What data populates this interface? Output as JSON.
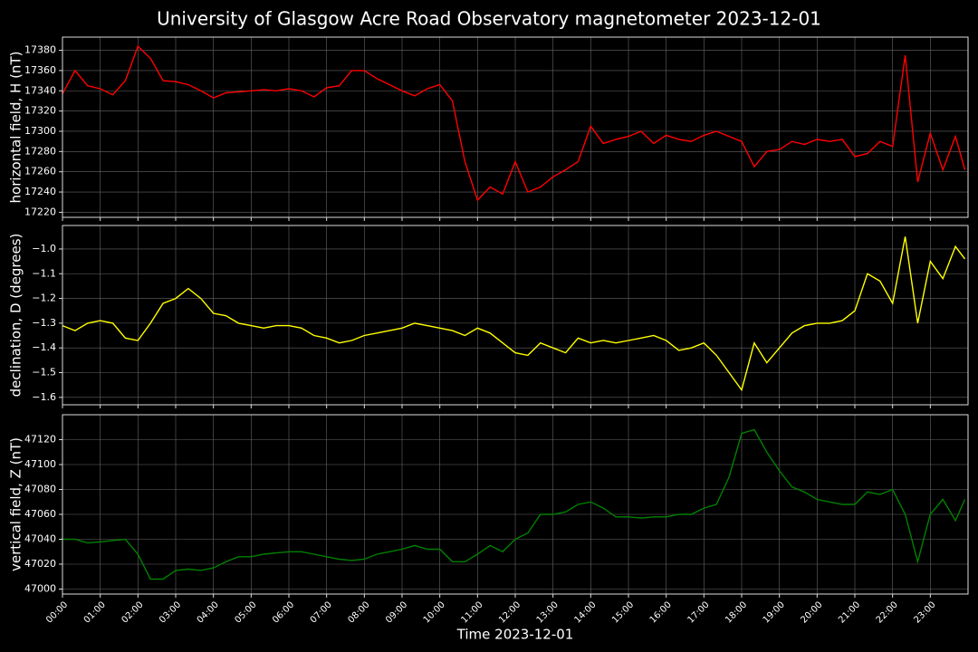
{
  "title": "University of Glasgow Acre Road Observatory magnetometer 2023-12-01",
  "chart_data": [
    {
      "type": "line",
      "ylabel": "horizontal field, H (nT)",
      "color": "#ff0000",
      "grid": true,
      "xlim": [
        "00:00",
        "24:00"
      ],
      "ylim": [
        17215,
        17393
      ],
      "yticks": [
        17220,
        17240,
        17260,
        17280,
        17300,
        17320,
        17340,
        17360,
        17380
      ],
      "xticks": [
        "00:00",
        "01:00",
        "02:00",
        "03:00",
        "04:00",
        "05:00",
        "06:00",
        "07:00",
        "08:00",
        "09:00",
        "10:00",
        "11:00",
        "12:00",
        "13:00",
        "14:00",
        "15:00",
        "16:00",
        "17:00",
        "18:00",
        "19:00",
        "20:00",
        "21:00",
        "22:00",
        "23:00"
      ],
      "x": [
        "00:00",
        "00:20",
        "00:40",
        "01:00",
        "01:20",
        "01:40",
        "02:00",
        "02:20",
        "02:40",
        "03:00",
        "03:20",
        "03:40",
        "04:00",
        "04:20",
        "04:40",
        "05:00",
        "05:20",
        "05:40",
        "06:00",
        "06:20",
        "06:40",
        "07:00",
        "07:20",
        "07:40",
        "08:00",
        "08:20",
        "08:40",
        "09:00",
        "09:20",
        "09:40",
        "10:00",
        "10:20",
        "10:40",
        "11:00",
        "11:20",
        "11:40",
        "12:00",
        "12:20",
        "12:40",
        "13:00",
        "13:20",
        "13:40",
        "14:00",
        "14:20",
        "14:40",
        "15:00",
        "15:20",
        "15:40",
        "16:00",
        "16:20",
        "16:40",
        "17:00",
        "17:20",
        "17:40",
        "18:00",
        "18:20",
        "18:40",
        "19:00",
        "19:20",
        "19:40",
        "20:00",
        "20:20",
        "20:40",
        "21:00",
        "21:20",
        "21:40",
        "22:00",
        "22:20",
        "22:40",
        "23:00",
        "23:20",
        "23:40",
        "23:55"
      ],
      "values": [
        17337,
        17360,
        17345,
        17342,
        17336,
        17350,
        17384,
        17372,
        17350,
        17349,
        17346,
        17340,
        17333,
        17338,
        17339,
        17340,
        17341,
        17340,
        17342,
        17340,
        17334,
        17343,
        17345,
        17360,
        17360,
        17352,
        17346,
        17340,
        17335,
        17342,
        17346,
        17330,
        17270,
        17232,
        17245,
        17238,
        17270,
        17240,
        17245,
        17255,
        17262,
        17270,
        17305,
        17288,
        17292,
        17295,
        17300,
        17288,
        17296,
        17292,
        17290,
        17296,
        17300,
        17295,
        17290,
        17265,
        17280,
        17282,
        17290,
        17287,
        17292,
        17290,
        17292,
        17275,
        17278,
        17290,
        17285,
        17375,
        17250,
        17298,
        17262,
        17295,
        17262
      ]
    },
    {
      "type": "line",
      "ylabel": "declination, D (degrees)",
      "color": "#ffff00",
      "grid": true,
      "xlim": [
        "00:00",
        "24:00"
      ],
      "ylim": [
        -1.63,
        -0.905
      ],
      "yticks": [
        {
          "value": -1.6,
          "label": "−1.6"
        },
        {
          "value": -1.5,
          "label": "−1.5"
        },
        {
          "value": -1.4,
          "label": "−1.4"
        },
        {
          "value": -1.3,
          "label": "−1.3"
        },
        {
          "value": -1.2,
          "label": "−1.2"
        },
        {
          "value": -1.1,
          "label": "−1.1"
        },
        {
          "value": -1.0,
          "label": "−1.0"
        }
      ],
      "xticks": [
        "00:00",
        "01:00",
        "02:00",
        "03:00",
        "04:00",
        "05:00",
        "06:00",
        "07:00",
        "08:00",
        "09:00",
        "10:00",
        "11:00",
        "12:00",
        "13:00",
        "14:00",
        "15:00",
        "16:00",
        "17:00",
        "18:00",
        "19:00",
        "20:00",
        "21:00",
        "22:00",
        "23:00"
      ],
      "x": [
        "00:00",
        "00:20",
        "00:40",
        "01:00",
        "01:20",
        "01:40",
        "02:00",
        "02:20",
        "02:40",
        "03:00",
        "03:20",
        "03:40",
        "04:00",
        "04:20",
        "04:40",
        "05:00",
        "05:20",
        "05:40",
        "06:00",
        "06:20",
        "06:40",
        "07:00",
        "07:20",
        "07:40",
        "08:00",
        "08:20",
        "08:40",
        "09:00",
        "09:20",
        "09:40",
        "10:00",
        "10:20",
        "10:40",
        "11:00",
        "11:20",
        "11:40",
        "12:00",
        "12:20",
        "12:40",
        "13:00",
        "13:20",
        "13:40",
        "14:00",
        "14:20",
        "14:40",
        "15:00",
        "15:20",
        "15:40",
        "16:00",
        "16:20",
        "16:40",
        "17:00",
        "17:20",
        "17:40",
        "18:00",
        "18:20",
        "18:40",
        "19:00",
        "19:20",
        "19:40",
        "20:00",
        "20:20",
        "20:40",
        "21:00",
        "21:20",
        "21:40",
        "22:00",
        "22:20",
        "22:40",
        "23:00",
        "23:20",
        "23:40",
        "23:55"
      ],
      "values": [
        -1.31,
        -1.33,
        -1.3,
        -1.29,
        -1.3,
        -1.36,
        -1.37,
        -1.3,
        -1.22,
        -1.2,
        -1.16,
        -1.2,
        -1.26,
        -1.27,
        -1.3,
        -1.31,
        -1.32,
        -1.31,
        -1.31,
        -1.32,
        -1.35,
        -1.36,
        -1.38,
        -1.37,
        -1.35,
        -1.34,
        -1.33,
        -1.32,
        -1.3,
        -1.31,
        -1.32,
        -1.33,
        -1.35,
        -1.32,
        -1.34,
        -1.38,
        -1.42,
        -1.43,
        -1.38,
        -1.4,
        -1.42,
        -1.36,
        -1.38,
        -1.37,
        -1.38,
        -1.37,
        -1.36,
        -1.35,
        -1.37,
        -1.41,
        -1.4,
        -1.38,
        -1.43,
        -1.5,
        -1.57,
        -1.38,
        -1.46,
        -1.4,
        -1.34,
        -1.31,
        -1.3,
        -1.3,
        -1.29,
        -1.25,
        -1.1,
        -1.13,
        -1.22,
        -0.95,
        -1.3,
        -1.05,
        -1.12,
        -0.99,
        -1.04
      ]
    },
    {
      "type": "line",
      "ylabel": "vertical field, Z (nT)",
      "xlabel": "Time 2023-12-01",
      "color": "#008000",
      "grid": true,
      "xlim": [
        "00:00",
        "24:00"
      ],
      "ylim": [
        46996,
        47140
      ],
      "yticks": [
        47000,
        47020,
        47040,
        47060,
        47080,
        47100,
        47120
      ],
      "xticks": [
        "00:00",
        "01:00",
        "02:00",
        "03:00",
        "04:00",
        "05:00",
        "06:00",
        "07:00",
        "08:00",
        "09:00",
        "10:00",
        "11:00",
        "12:00",
        "13:00",
        "14:00",
        "15:00",
        "16:00",
        "17:00",
        "18:00",
        "19:00",
        "20:00",
        "21:00",
        "22:00",
        "23:00"
      ],
      "x": [
        "00:00",
        "00:20",
        "00:40",
        "01:00",
        "01:20",
        "01:40",
        "02:00",
        "02:20",
        "02:40",
        "03:00",
        "03:20",
        "03:40",
        "04:00",
        "04:20",
        "04:40",
        "05:00",
        "05:20",
        "05:40",
        "06:00",
        "06:20",
        "06:40",
        "07:00",
        "07:20",
        "07:40",
        "08:00",
        "08:20",
        "08:40",
        "09:00",
        "09:20",
        "09:40",
        "10:00",
        "10:20",
        "10:40",
        "11:00",
        "11:20",
        "11:40",
        "12:00",
        "12:20",
        "12:40",
        "13:00",
        "13:20",
        "13:40",
        "14:00",
        "14:20",
        "14:40",
        "15:00",
        "15:20",
        "15:40",
        "16:00",
        "16:20",
        "16:40",
        "17:00",
        "17:20",
        "17:40",
        "18:00",
        "18:20",
        "18:40",
        "19:00",
        "19:20",
        "19:40",
        "20:00",
        "20:20",
        "20:40",
        "21:00",
        "21:20",
        "21:40",
        "22:00",
        "22:20",
        "22:40",
        "23:00",
        "23:20",
        "23:40",
        "23:55"
      ],
      "values": [
        47040,
        47040,
        47037,
        47038,
        47039,
        47040,
        47028,
        47008,
        47008,
        47015,
        47016,
        47015,
        47017,
        47022,
        47026,
        47026,
        47028,
        47029,
        47030,
        47030,
        47028,
        47026,
        47024,
        47023,
        47024,
        47028,
        47030,
        47032,
        47035,
        47032,
        47032,
        47022,
        47022,
        47028,
        47035,
        47030,
        47040,
        47045,
        47060,
        47060,
        47062,
        47068,
        47070,
        47065,
        47058,
        47058,
        47057,
        47058,
        47058,
        47060,
        47060,
        47065,
        47068,
        47090,
        47125,
        47128,
        47110,
        47095,
        47082,
        47078,
        47072,
        47070,
        47068,
        47068,
        47078,
        47076,
        47080,
        47060,
        47022,
        47060,
        47072,
        47055,
        47072
      ]
    }
  ]
}
